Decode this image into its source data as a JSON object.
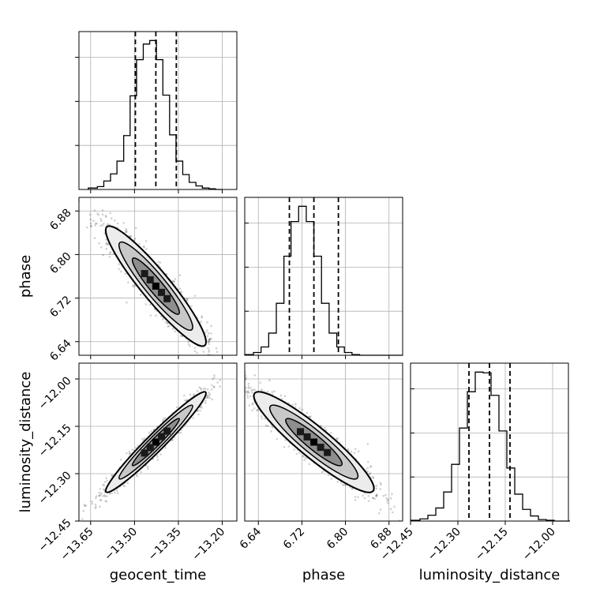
{
  "chart_data": {
    "type": "corner",
    "parameters": [
      "geocent_time",
      "phase",
      "luminosity_distance"
    ],
    "ticks": {
      "geocent_time": [
        "−13.65",
        "−13.50",
        "−13.35",
        "−13.20"
      ],
      "phase": [
        "6.64",
        "6.72",
        "6.80",
        "6.88"
      ],
      "luminosity_distance": [
        "−12.45",
        "−12.30",
        "−12.15",
        "−12.00"
      ]
    },
    "tick_values": {
      "geocent_time": [
        -13.65,
        -13.5,
        -13.35,
        -13.2
      ],
      "phase": [
        6.64,
        6.72,
        6.8,
        6.88
      ],
      "luminosity_distance": [
        -12.45,
        -12.3,
        -12.15,
        -12.0
      ]
    },
    "ranges": {
      "geocent_time": [
        -13.69,
        -13.15
      ],
      "phase": [
        6.615,
        6.905
      ],
      "luminosity_distance": [
        -12.45,
        -11.95
      ]
    },
    "quantiles": {
      "geocent_time": [
        -13.497,
        -13.427,
        -13.357
      ],
      "phase": [
        6.697,
        6.742,
        6.787
      ],
      "luminosity_distance": [
        -12.265,
        -12.2,
        -12.135
      ]
    },
    "histograms": {
      "geocent_time": {
        "bin_edges": [
          -13.658,
          -13.627,
          -13.605,
          -13.582,
          -13.56,
          -13.537,
          -13.515,
          -13.493,
          -13.47,
          -13.448,
          -13.425,
          -13.403,
          -13.38,
          -13.358,
          -13.335,
          -13.313,
          -13.29,
          -13.268,
          -13.245,
          -13.223,
          -13.2
        ],
        "counts": [
          2,
          4,
          12,
          22,
          40,
          76,
          132,
          183,
          205,
          210,
          183,
          133,
          77,
          40,
          21,
          10,
          5,
          2,
          1,
          0
        ]
      },
      "phase": {
        "bin_edges": [
          6.615,
          6.631,
          6.645,
          6.659,
          6.673,
          6.687,
          6.7,
          6.714,
          6.728,
          6.742,
          6.756,
          6.77,
          6.784,
          6.798,
          6.812,
          6.826,
          6.839,
          6.853,
          6.867,
          6.881,
          6.905
        ],
        "counts": [
          1,
          4,
          12,
          32,
          75,
          143,
          193,
          215,
          193,
          143,
          75,
          32,
          12,
          4,
          1,
          0,
          0,
          0,
          0,
          0
        ]
      },
      "luminosity_distance": {
        "bin_edges": [
          -12.448,
          -12.42,
          -12.395,
          -12.37,
          -12.345,
          -12.32,
          -12.295,
          -12.27,
          -12.245,
          -12.22,
          -12.195,
          -12.17,
          -12.145,
          -12.12,
          -12.095,
          -12.07,
          -12.045,
          -12.02,
          -11.995,
          -11.97,
          -11.945
        ],
        "counts": [
          1,
          3,
          8,
          18,
          40,
          78,
          128,
          178,
          205,
          204,
          173,
          124,
          73,
          37,
          16,
          7,
          2,
          1,
          0,
          0
        ]
      }
    },
    "correlations": {
      "phase|geocent_time": -0.93,
      "luminosity_distance|geocent_time": 0.97,
      "luminosity_distance|phase": -0.92
    },
    "grid": true
  }
}
